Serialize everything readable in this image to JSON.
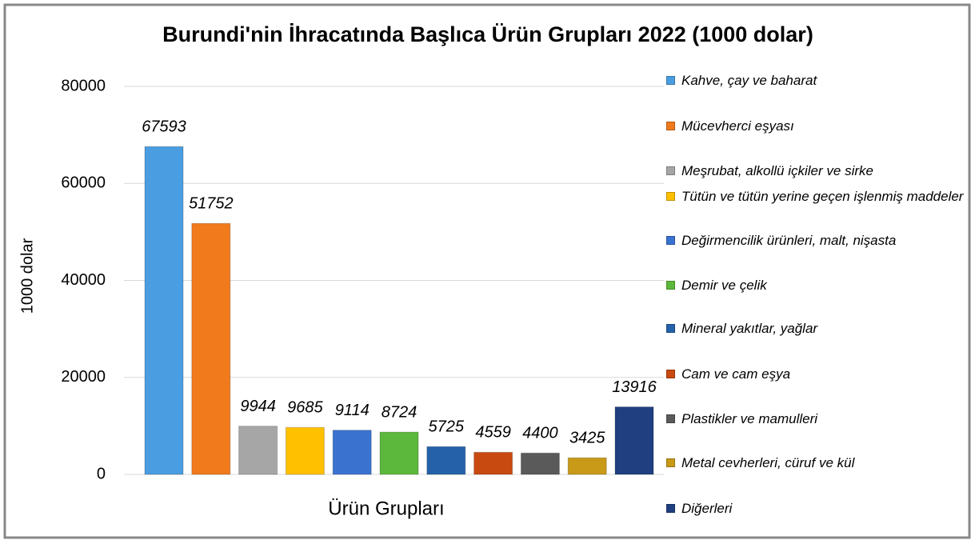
{
  "chart_data": {
    "type": "bar",
    "title": "Burundi'nin İhracatında Başlıca Ürün Grupları 2022 (1000 dolar)",
    "x_label": "Ürün Grupları",
    "y_label": "1000 dolar",
    "ylim": [
      0,
      80000
    ],
    "yticks": [
      0,
      20000,
      40000,
      60000,
      80000
    ],
    "grid": true,
    "legend": "right",
    "series": [
      {
        "name": "Kahve, çay ve baharat",
        "color": "#4a9de0",
        "values": [
          67593
        ]
      },
      {
        "name": "Mücevherci eşyası",
        "color": "#f07a1c",
        "values": [
          51752
        ]
      },
      {
        "name": "Meşrubat, alkollü içkiler ve sirke",
        "color": "#a6a6a6",
        "values": [
          9944
        ]
      },
      {
        "name": "Tütün ve tütün yerine geçen işlenmiş maddeler",
        "color": "#ffc000",
        "values": [
          9685
        ]
      },
      {
        "name": "Değirmencilik ürünleri, malt, nişasta",
        "color": "#3a72d0",
        "values": [
          9114
        ]
      },
      {
        "name": "Demir ve çelik",
        "color": "#5cb83c",
        "values": [
          8724
        ]
      },
      {
        "name": "Mineral yakıtlar, yağlar",
        "color": "#2461a8",
        "values": [
          5725
        ]
      },
      {
        "name": "Cam ve cam eşya",
        "color": "#c84a10",
        "values": [
          4559
        ]
      },
      {
        "name": "Plastikler ve mamulleri",
        "color": "#5a5a5a",
        "values": [
          4400
        ]
      },
      {
        "name": "Metal cevherleri, cüruf ve kül",
        "color": "#c89a18",
        "values": [
          3425
        ]
      },
      {
        "name": "Diğerleri",
        "color": "#1f3f80",
        "values": [
          13916
        ]
      }
    ]
  }
}
